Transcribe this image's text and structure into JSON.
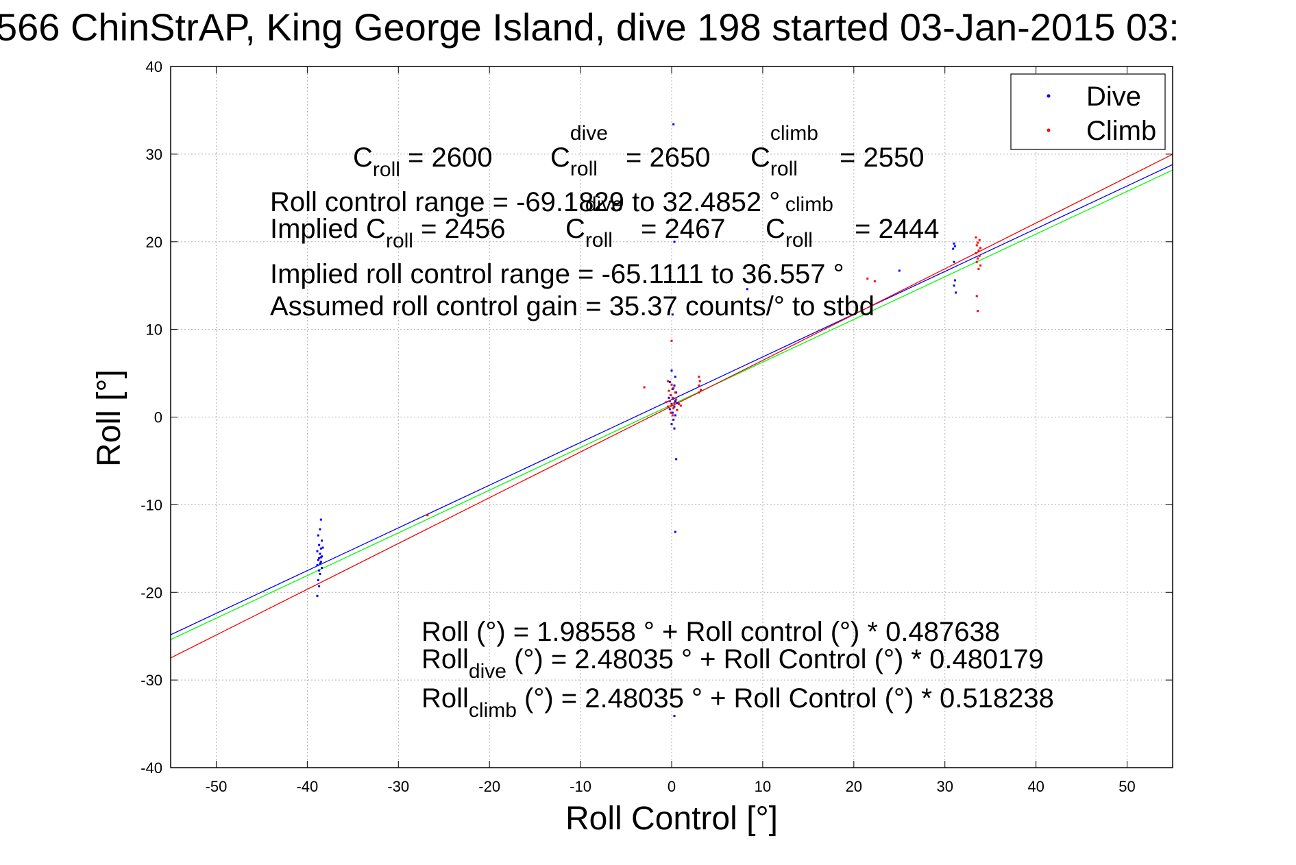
{
  "title": "566 ChinStrAP, King George Island, dive 198 started 03-Jan-2015 03:",
  "legend": {
    "dive": "Dive",
    "climb": "Climb",
    "dive_color": "#0000ff",
    "climb_color": "#ff0000"
  },
  "annotations": {
    "c_roll": "C",
    "roll_sub": "roll",
    "dive_sup": "dive",
    "climb_sup": "climb",
    "c_roll_val": " = 2600",
    "c_dive_val": " = 2650",
    "c_climb_val": " = 2550",
    "range_line": "Roll control range = -69.1829 to 32.4852 °",
    "implied_label": "Implied C",
    "implied_val": " = 2456",
    "implied_dive_val": " = 2467",
    "implied_climb_val": " = 2444",
    "implied_range_line": "Implied roll control range = -65.1111 to 36.557 °",
    "gain_line": "Assumed roll control gain = 35.37 counts/° to stbd",
    "fit_all": "Roll (°) = 1.98558 ° + Roll control (°) * 0.487638",
    "roll_word": "Roll",
    "dive_sub": "dive",
    "climb_sub": "climb",
    "fit_dive_rest": " (°) = 2.48035 ° + Roll Control (°) * 0.480179",
    "fit_climb_rest": " (°) = 2.48035 ° + Roll Control (°) * 0.518238"
  },
  "chart_data": {
    "type": "scatter",
    "xlabel": "Roll Control [°]",
    "ylabel": "Roll [°]",
    "xlim": [
      -55,
      55
    ],
    "ylim": [
      -40,
      40
    ],
    "xticks": [
      -50,
      -40,
      -30,
      -20,
      -10,
      0,
      10,
      20,
      30,
      40,
      50
    ],
    "yticks": [
      -40,
      -30,
      -20,
      -10,
      0,
      10,
      20,
      30,
      40
    ],
    "grid": true,
    "legend_position": "top-right",
    "series": [
      {
        "name": "Dive",
        "color": "#0000ff",
        "points": [
          [
            -38.5,
            -11.7
          ],
          [
            -38.6,
            -12.8
          ],
          [
            -38.8,
            -13.5
          ],
          [
            -38.4,
            -14.1
          ],
          [
            -38.7,
            -14.6
          ],
          [
            -38.5,
            -15.0
          ],
          [
            -38.9,
            -15.3
          ],
          [
            -38.6,
            -15.6
          ],
          [
            -38.4,
            -15.9
          ],
          [
            -38.7,
            -16.1
          ],
          [
            -38.8,
            -16.3
          ],
          [
            -38.5,
            -16.5
          ],
          [
            -38.6,
            -16.7
          ],
          [
            -38.9,
            -16.9
          ],
          [
            -38.4,
            -17.2
          ],
          [
            -38.7,
            -17.5
          ],
          [
            -38.6,
            -17.9
          ],
          [
            -38.8,
            -18.6
          ],
          [
            -38.7,
            -19.3
          ],
          [
            -38.9,
            -20.4
          ],
          [
            -38.3,
            -14.9
          ],
          [
            -38.5,
            -16.0
          ],
          [
            0.2,
            33.4
          ],
          [
            0.3,
            20.0
          ],
          [
            0.1,
            11.7
          ],
          [
            0.0,
            5.3
          ],
          [
            0.4,
            4.6
          ],
          [
            -0.2,
            4.0
          ],
          [
            0.3,
            3.6
          ],
          [
            0.1,
            3.2
          ],
          [
            0.5,
            2.8
          ],
          [
            -0.1,
            2.5
          ],
          [
            0.2,
            2.1
          ],
          [
            0.4,
            1.8
          ],
          [
            0.0,
            1.5
          ],
          [
            0.3,
            1.2
          ],
          [
            -0.2,
            0.9
          ],
          [
            0.1,
            0.5
          ],
          [
            0.4,
            0.2
          ],
          [
            0.2,
            -0.3
          ],
          [
            0.0,
            -0.8
          ],
          [
            0.3,
            -1.3
          ],
          [
            0.5,
            -4.8
          ],
          [
            0.4,
            -13.1
          ],
          [
            0.3,
            -34.1
          ],
          [
            0.6,
            1.6
          ],
          [
            -0.3,
            2.2
          ],
          [
            8.3,
            14.6
          ],
          [
            25.0,
            16.7
          ],
          [
            31.0,
            19.8
          ],
          [
            31.1,
            19.5
          ],
          [
            30.9,
            19.2
          ],
          [
            31.0,
            17.7
          ],
          [
            31.1,
            15.6
          ],
          [
            31.0,
            15.0
          ],
          [
            31.2,
            14.2
          ]
        ]
      },
      {
        "name": "Climb",
        "color": "#ff0000",
        "points": [
          [
            -3.0,
            3.4
          ],
          [
            -0.4,
            4.1
          ],
          [
            0.0,
            3.7
          ],
          [
            0.2,
            3.3
          ],
          [
            -0.3,
            3.0
          ],
          [
            0.4,
            2.8
          ],
          [
            -0.1,
            2.5
          ],
          [
            0.1,
            2.2
          ],
          [
            0.5,
            2.0
          ],
          [
            -0.2,
            1.8
          ],
          [
            0.3,
            1.6
          ],
          [
            0.0,
            1.4
          ],
          [
            -0.4,
            1.2
          ],
          [
            0.2,
            1.0
          ],
          [
            0.6,
            0.8
          ],
          [
            -0.1,
            0.5
          ],
          [
            0.1,
            0.2
          ],
          [
            0.0,
            8.7
          ],
          [
            0.8,
            1.5
          ],
          [
            1.0,
            1.3
          ],
          [
            -0.6,
            1.7
          ],
          [
            3.0,
            4.6
          ],
          [
            3.1,
            4.1
          ],
          [
            3.0,
            3.6
          ],
          [
            3.2,
            3.1
          ],
          [
            3.0,
            2.8
          ],
          [
            -26.8,
            -11.2
          ],
          [
            21.5,
            15.8
          ],
          [
            22.3,
            15.5
          ],
          [
            33.4,
            20.5
          ],
          [
            33.8,
            20.2
          ],
          [
            33.6,
            19.9
          ],
          [
            33.5,
            19.6
          ],
          [
            33.9,
            19.3
          ],
          [
            33.7,
            19.0
          ],
          [
            33.4,
            18.7
          ],
          [
            33.8,
            18.4
          ],
          [
            33.6,
            18.1
          ],
          [
            33.5,
            17.7
          ],
          [
            33.9,
            17.3
          ],
          [
            33.7,
            16.9
          ],
          [
            33.5,
            13.8
          ],
          [
            33.6,
            12.1
          ]
        ]
      }
    ],
    "fit_lines": [
      {
        "label": "Blue fit",
        "color": "#0000ff",
        "intercept": 1.98558,
        "slope": 0.487638
      },
      {
        "label": "Green fit",
        "color": "#00ff00",
        "intercept": 1.4,
        "slope": 0.487
      },
      {
        "label": "Red fit",
        "color": "#ff0000",
        "intercept": 1.25,
        "slope": 0.5224
      }
    ]
  }
}
